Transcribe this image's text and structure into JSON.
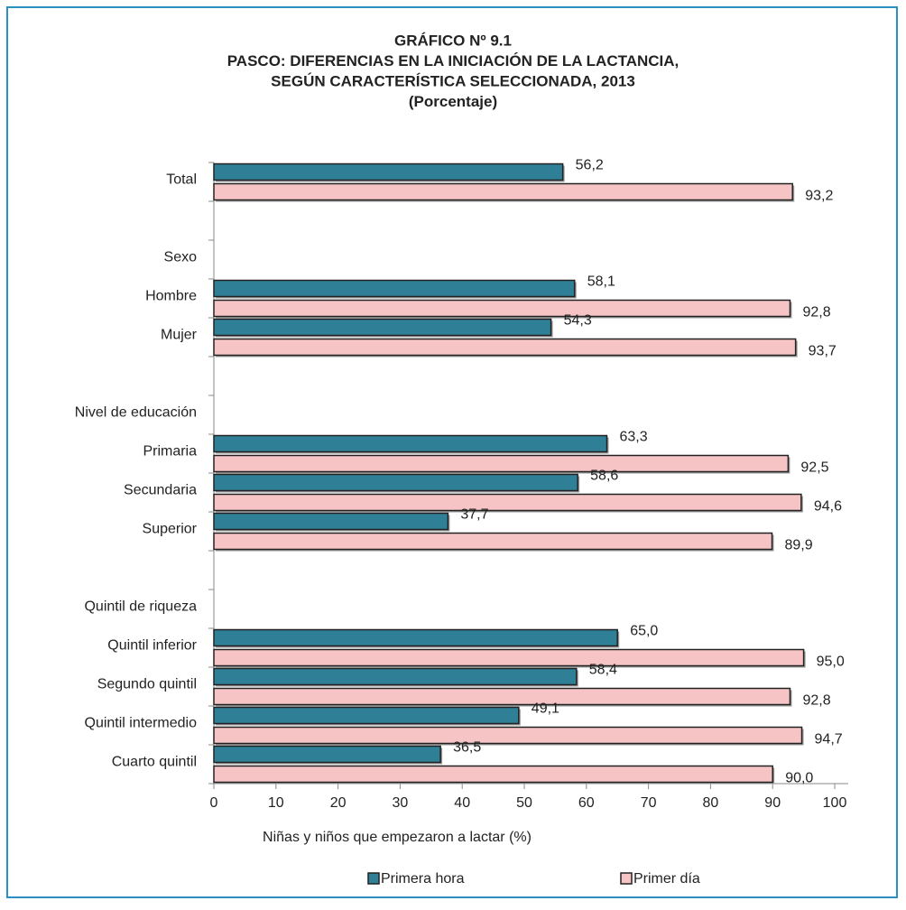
{
  "chart_data": {
    "type": "hbar",
    "title_lines": [
      "GRÁFICO Nº 9.1",
      "PASCO: DIFERENCIAS EN LA INICIACIÓN DE LA LACTANCIA,",
      "SEGÚN CARACTERÍSTICA SELECCIONADA, 2013",
      "(Porcentaje)"
    ],
    "xlabel": "Niñas y niños que empezaron a lactar (%)",
    "categories": [
      "Total",
      null,
      "Sexo",
      "Hombre",
      "Mujer",
      null,
      "Nivel de educación",
      "Primaria",
      "Secundaria",
      "Superior",
      null,
      "Quintil de riqueza",
      "Quintil inferior",
      "Segundo quintil",
      "Quintil intermedio",
      "Cuarto quintil"
    ],
    "series": [
      {
        "name": "Primera hora",
        "color": "#2f7f97",
        "values": [
          56.2,
          null,
          null,
          58.1,
          54.3,
          null,
          null,
          63.3,
          58.6,
          37.7,
          null,
          null,
          65.0,
          58.4,
          49.1,
          36.5
        ],
        "value_labels": [
          "56,2",
          null,
          null,
          "58,1",
          "54,3",
          null,
          null,
          "63,3",
          "58,6",
          "37,7",
          null,
          null,
          "65,0",
          "58,4",
          "49,1",
          "36,5"
        ]
      },
      {
        "name": "Primer día",
        "color": "#f6c4c4",
        "values": [
          93.2,
          null,
          null,
          92.8,
          93.7,
          null,
          null,
          92.5,
          94.6,
          89.9,
          null,
          null,
          95.0,
          92.8,
          94.7,
          90.0
        ],
        "value_labels": [
          "93,2",
          null,
          null,
          "92,8",
          "93,7",
          null,
          null,
          "92,5",
          "94,6",
          "89,9",
          null,
          null,
          "95,0",
          "92,8",
          "94,7",
          "90,0"
        ]
      }
    ],
    "xlim": [
      0,
      100
    ],
    "xticks": [
      0,
      10,
      20,
      30,
      40,
      50,
      60,
      70,
      80,
      90,
      100
    ],
    "legend": "bottom",
    "grid": false
  }
}
